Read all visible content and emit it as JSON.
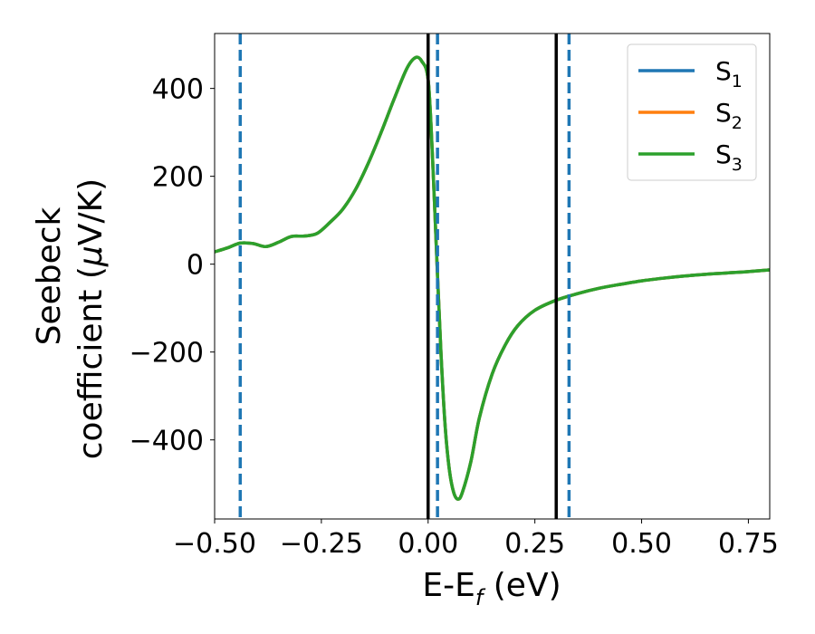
{
  "chart_data": {
    "type": "line",
    "title": "",
    "xlabel": "E-E",
    "xlabel_sub": "f",
    "xlabel_unit": " (eV)",
    "ylabel_line1": "Seebeck",
    "ylabel_line2_pre": "coefficient  (",
    "ylabel_mu": "μ",
    "ylabel_line2_post": "V/K)",
    "xlim": [
      -0.5,
      0.8
    ],
    "ylim": [
      -580,
      525
    ],
    "xticks": [
      -0.5,
      -0.25,
      0.0,
      0.25,
      0.5,
      0.75
    ],
    "xtick_labels": [
      "−0.50",
      "−0.25",
      "0.00",
      "0.25",
      "0.50",
      "0.75"
    ],
    "yticks": [
      -400,
      -200,
      0,
      200,
      400
    ],
    "ytick_labels": [
      "−400",
      "−200",
      "0",
      "200",
      "400"
    ],
    "grid": false,
    "legend_position": "top-right",
    "legend": [
      {
        "base": "S",
        "sub": "1",
        "color": "#1f77b4"
      },
      {
        "base": "S",
        "sub": "2",
        "color": "#ff7f0e"
      },
      {
        "base": "S",
        "sub": "3",
        "color": "#2ca02c"
      }
    ],
    "x": [
      -0.5,
      -0.47,
      -0.44,
      -0.41,
      -0.38,
      -0.35,
      -0.32,
      -0.29,
      -0.26,
      -0.23,
      -0.2,
      -0.17,
      -0.14,
      -0.11,
      -0.08,
      -0.05,
      -0.03,
      -0.015,
      0.0,
      0.01,
      0.02,
      0.03,
      0.04,
      0.05,
      0.06,
      0.07,
      0.08,
      0.1,
      0.12,
      0.15,
      0.18,
      0.21,
      0.25,
      0.3,
      0.35,
      0.4,
      0.45,
      0.5,
      0.55,
      0.6,
      0.65,
      0.7,
      0.75,
      0.8
    ],
    "series": [
      {
        "name": "S1",
        "color": "#1f77b4",
        "values": [
          28,
          37,
          48,
          47,
          40,
          50,
          63,
          64,
          70,
          95,
          125,
          170,
          230,
          300,
          375,
          445,
          470,
          462,
          420,
          250,
          20,
          -200,
          -370,
          -470,
          -520,
          -535,
          -520,
          -450,
          -350,
          -250,
          -185,
          -140,
          -105,
          -82,
          -67,
          -55,
          -46,
          -38,
          -32,
          -27,
          -23,
          -20,
          -17,
          -13
        ]
      },
      {
        "name": "S2",
        "color": "#ff7f0e",
        "values": [
          28,
          37,
          48,
          47,
          40,
          50,
          63,
          64,
          70,
          95,
          125,
          170,
          230,
          300,
          375,
          445,
          470,
          462,
          420,
          250,
          20,
          -200,
          -370,
          -470,
          -520,
          -535,
          -520,
          -450,
          -350,
          -250,
          -185,
          -140,
          -105,
          -82,
          -67,
          -55,
          -46,
          -38,
          -32,
          -27,
          -23,
          -20,
          -17,
          -13
        ]
      },
      {
        "name": "S3",
        "color": "#2ca02c",
        "values": [
          28,
          37,
          48,
          47,
          40,
          50,
          63,
          64,
          70,
          95,
          125,
          170,
          230,
          300,
          375,
          445,
          470,
          462,
          420,
          250,
          20,
          -200,
          -370,
          -470,
          -520,
          -535,
          -520,
          -450,
          -350,
          -250,
          -185,
          -140,
          -105,
          -82,
          -67,
          -55,
          -46,
          -38,
          -32,
          -27,
          -23,
          -20,
          -17,
          -13
        ]
      }
    ],
    "vlines_solid": [
      {
        "x": 0.0,
        "color": "#000000"
      },
      {
        "x": 0.3,
        "color": "#000000"
      }
    ],
    "vlines_dashed": [
      {
        "x": -0.44,
        "color": "#1f77b4"
      },
      {
        "x": 0.022,
        "color": "#1f77b4"
      },
      {
        "x": 0.33,
        "color": "#1f77b4"
      }
    ]
  }
}
